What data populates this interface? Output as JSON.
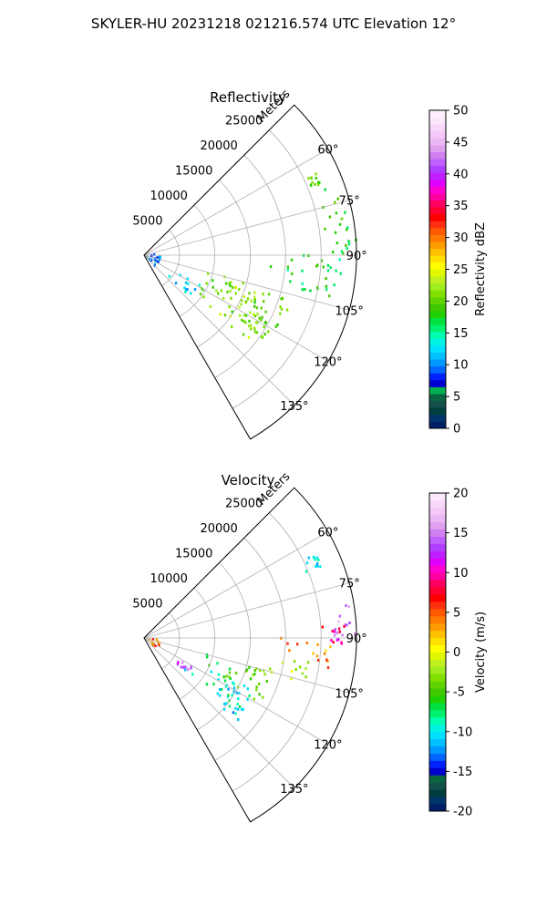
{
  "figure": {
    "title": "SKYLER-HU  20231218  021216.574 UTC Elevation 12°"
  },
  "panels": [
    {
      "title": "Reflectivity",
      "range_unit_label": "Meters",
      "range_tick_labels": [
        "5000",
        "10000",
        "15000",
        "20000",
        "25000"
      ],
      "angle_tick_labels": [
        "60°",
        "75°",
        "90°",
        "105°",
        "120°",
        "135°"
      ],
      "colorbar": {
        "label": "Reflectivity dBZ",
        "tick_labels": [
          "0",
          "5",
          "10",
          "15",
          "20",
          "25",
          "30",
          "35",
          "40",
          "45",
          "50"
        ],
        "colors": [
          "#001f66",
          "#00356b",
          "#003f3f",
          "#14504a",
          "#0a6640",
          "#00b050",
          "#0000d0",
          "#0022ff",
          "#0066ff",
          "#0099ff",
          "#00c0ff",
          "#00e0ff",
          "#00f2e0",
          "#00ffb0",
          "#00f070",
          "#00e040",
          "#20d000",
          "#40c800",
          "#60d400",
          "#80e000",
          "#a0ec20",
          "#c0f020",
          "#e0f800",
          "#ffff00",
          "#ffe000",
          "#ffc000",
          "#ff9c00",
          "#ff7a00",
          "#ff5a00",
          "#ff3010",
          "#ff0000",
          "#ff0030",
          "#ff0060",
          "#ff00a0",
          "#ff00d0",
          "#e000ff",
          "#c020ff",
          "#b040ff",
          "#c060ff",
          "#d080f0",
          "#e0a0f0",
          "#ecb8f4",
          "#f4c8f8",
          "#f8d8fa",
          "#fbe8fc",
          "#fdf0fd"
        ]
      }
    },
    {
      "title": "Velocity",
      "range_unit_label": "Meters",
      "range_tick_labels": [
        "5000",
        "10000",
        "15000",
        "20000",
        "25000"
      ],
      "angle_tick_labels": [
        "60°",
        "75°",
        "90°",
        "105°",
        "120°",
        "135°"
      ],
      "colorbar": {
        "label": "Velocity (m/s)",
        "tick_labels": [
          "-20",
          "-15",
          "-10",
          "-5",
          "0",
          "5",
          "10",
          "15",
          "20"
        ],
        "colors": [
          "#001f66",
          "#00356b",
          "#003f3f",
          "#14504a",
          "#0a6640",
          "#0000d0",
          "#0022ff",
          "#0066ff",
          "#0099ff",
          "#00c0ff",
          "#00e0ff",
          "#00f2e0",
          "#00ffb0",
          "#00f070",
          "#00e040",
          "#20d000",
          "#40c800",
          "#60d400",
          "#80e000",
          "#a0ec20",
          "#c0f020",
          "#e0f800",
          "#ffff00",
          "#ffe000",
          "#ffc000",
          "#ff9c00",
          "#ff7a00",
          "#ff5a00",
          "#ff3010",
          "#ff0000",
          "#ff0030",
          "#ff0060",
          "#ff00a0",
          "#ff00d0",
          "#e000ff",
          "#c020ff",
          "#b040ff",
          "#c060ff",
          "#d080f0",
          "#e0a0f0",
          "#ecb8f4",
          "#f4c8f8",
          "#f8d8fa",
          "#fbe8fc"
        ]
      }
    }
  ],
  "chart_data": [
    {
      "type": "heatmap",
      "subtype": "polar sector (radar PPI)",
      "title": "Reflectivity",
      "theta_range_deg": [
        45,
        150
      ],
      "theta_ticks_deg": [
        60,
        75,
        90,
        105,
        120,
        135
      ],
      "r_range_m": [
        0,
        30000
      ],
      "r_ticks_m": [
        5000,
        10000,
        15000,
        20000,
        25000
      ],
      "grid": true,
      "colorbar_range": [
        0,
        50
      ],
      "colorbar_label": "Reflectivity dBZ",
      "echo_regions": [
        {
          "theta_deg": [
            64,
            68
          ],
          "r_m": [
            24500,
            27000
          ],
          "value": 20
        },
        {
          "theta_deg": [
            70,
            90
          ],
          "r_m": [
            24000,
            30000
          ],
          "value": 18
        },
        {
          "theta_deg": [
            90,
            105
          ],
          "r_m": [
            17000,
            28000
          ],
          "value": 17
        },
        {
          "theta_deg": [
            105,
            125
          ],
          "r_m": [
            7000,
            22000
          ],
          "value": 20
        },
        {
          "theta_deg": [
            108,
            130
          ],
          "r_m": [
            9000,
            19000
          ],
          "value": 22
        },
        {
          "theta_deg": [
            118,
            132
          ],
          "r_m": [
            4000,
            9000
          ],
          "value": 13
        },
        {
          "theta_deg": [
            85,
            135
          ],
          "r_m": [
            200,
            2400
          ],
          "value": 10
        }
      ]
    },
    {
      "type": "heatmap",
      "subtype": "polar sector (radar PPI)",
      "title": "Velocity",
      "theta_range_deg": [
        45,
        150
      ],
      "theta_ticks_deg": [
        60,
        75,
        90,
        105,
        120,
        135
      ],
      "r_range_m": [
        0,
        30000
      ],
      "r_ticks_m": [
        5000,
        10000,
        15000,
        20000,
        25000
      ],
      "grid": true,
      "colorbar_range": [
        -20,
        20
      ],
      "colorbar_label": "Velocity (m/s)",
      "echo_regions": [
        {
          "theta_deg": [
            64,
            68
          ],
          "r_m": [
            24500,
            27000
          ],
          "value": -11
        },
        {
          "theta_deg": [
            80,
            90
          ],
          "r_m": [
            26000,
            30000
          ],
          "value": 14
        },
        {
          "theta_deg": [
            86,
            92
          ],
          "r_m": [
            24000,
            28500
          ],
          "value": 9
        },
        {
          "theta_deg": [
            90,
            100
          ],
          "r_m": [
            19000,
            27000
          ],
          "value": 4
        },
        {
          "theta_deg": [
            98,
            106
          ],
          "r_m": [
            15000,
            24000
          ],
          "value": -1
        },
        {
          "theta_deg": [
            105,
            120
          ],
          "r_m": [
            8000,
            19000
          ],
          "value": -5
        },
        {
          "theta_deg": [
            115,
            130
          ],
          "r_m": [
            6000,
            17000
          ],
          "value": -9
        },
        {
          "theta_deg": [
            120,
            132
          ],
          "r_m": [
            13000,
            18000
          ],
          "value": -11
        },
        {
          "theta_deg": [
            121,
            130
          ],
          "r_m": [
            4000,
            8000
          ],
          "value": 14
        },
        {
          "theta_deg": [
            95,
            130
          ],
          "r_m": [
            200,
            2400
          ],
          "value": 5
        }
      ]
    }
  ]
}
